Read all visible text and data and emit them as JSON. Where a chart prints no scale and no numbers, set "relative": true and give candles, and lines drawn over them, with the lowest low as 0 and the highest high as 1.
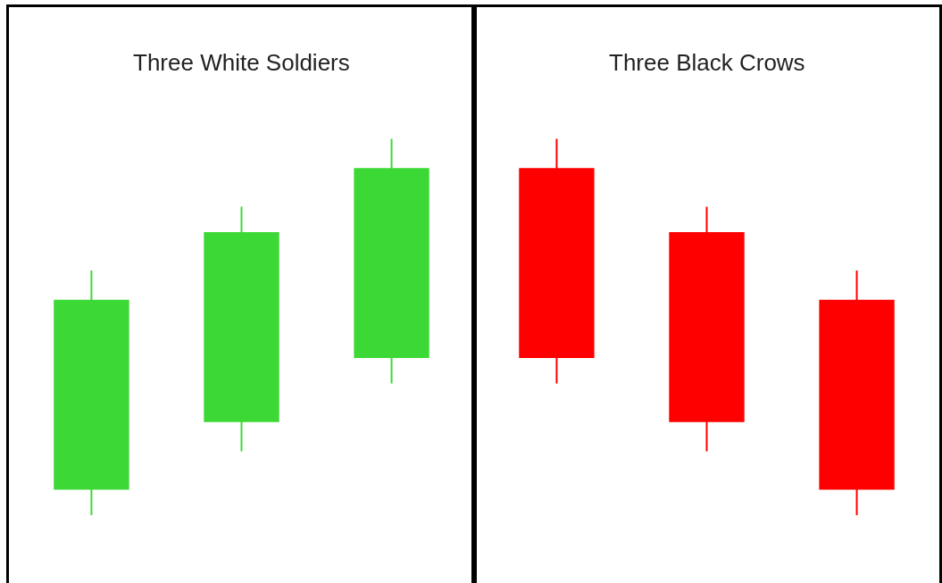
{
  "chart_data": [
    {
      "type": "candlestick",
      "title": "Three White Soldiers",
      "relative": true,
      "categories": [
        null,
        null,
        null
      ],
      "ohlc": [
        [
          0.07,
          0.65,
          0,
          0.57
        ],
        [
          0.25,
          0.82,
          0.17,
          0.75
        ],
        [
          0.42,
          1,
          0.35,
          0.92
        ]
      ],
      "colors": [
        "#3cd936",
        "#3cd936",
        "#3cd936"
      ]
    },
    {
      "type": "candlestick",
      "title": "Three Black Crows",
      "relative": true,
      "categories": [
        null,
        null,
        null
      ],
      "ohlc": [
        [
          0.92,
          1,
          0.35,
          0.42
        ],
        [
          0.75,
          0.82,
          0.17,
          0.25
        ],
        [
          0.57,
          0.65,
          0,
          0.07
        ]
      ],
      "colors": [
        "#ff0000",
        "#ff0000",
        "#ff0000"
      ]
    }
  ]
}
